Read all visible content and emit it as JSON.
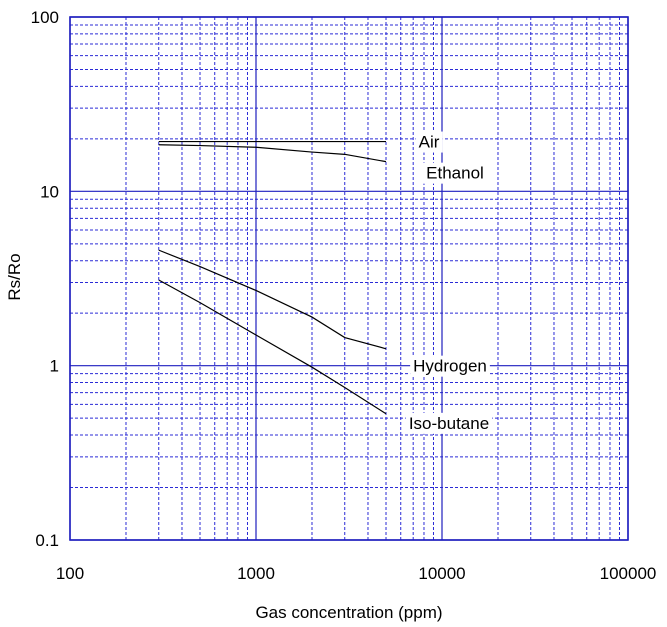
{
  "chart_data": {
    "type": "line",
    "title": "",
    "xlabel": "Gas concentration (ppm)",
    "ylabel": "Rs/Ro",
    "x_scale": "log",
    "y_scale": "log",
    "xlim": [
      100,
      100000
    ],
    "ylim": [
      0.1,
      100
    ],
    "grid": true,
    "legend": "none",
    "x_tick_labels": [
      "100",
      "1000",
      "10000",
      "100000"
    ],
    "y_tick_labels": [
      "0.1",
      "1",
      "10",
      "100"
    ],
    "series": [
      {
        "name": "Air",
        "color": "#000000",
        "x": [
          300,
          5000
        ],
        "y": [
          19.3,
          19.3
        ]
      },
      {
        "name": "Ethanol",
        "color": "#000000",
        "x": [
          300,
          500,
          1000,
          2000,
          3000,
          5000
        ],
        "y": [
          18.5,
          18.3,
          17.9,
          16.8,
          16.3,
          14.8
        ]
      },
      {
        "name": "Hydrogen",
        "color": "#000000",
        "x": [
          300,
          500,
          1000,
          2000,
          3000,
          5000
        ],
        "y": [
          4.6,
          3.7,
          2.7,
          1.9,
          1.45,
          1.25
        ]
      },
      {
        "name": "Iso-butane",
        "color": "#000000",
        "x": [
          300,
          500,
          1000,
          2000,
          3000,
          5000
        ],
        "y": [
          3.1,
          2.3,
          1.5,
          0.98,
          0.75,
          0.53
        ]
      }
    ],
    "annotations": [
      "Air",
      "Ethanol",
      "Hydrogen",
      "Iso-butane"
    ]
  }
}
